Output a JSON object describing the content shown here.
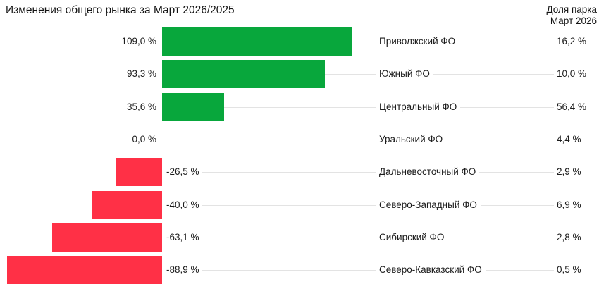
{
  "page": {
    "background": "#FFFFFF"
  },
  "chart_data": {
    "type": "bar",
    "orientation": "horizontal",
    "title": "Изменения общего рынка за Март 2026/2025",
    "share_header": {
      "line1": "Доля парка",
      "line2": "Март 2026"
    },
    "categories": [
      "Приволжский ФО",
      "Южный ФО",
      "Центральный ФО",
      "Уральский ФО",
      "Дальневосточный ФО",
      "Северо-Западный ФО",
      "Сибирский ФО",
      "Северо-Кавказский ФО"
    ],
    "series": [
      {
        "name": "Изменения общего рынка за Март 2026/2025, %",
        "values": [
          109.0,
          93.3,
          35.6,
          0.0,
          -26.5,
          -40.0,
          -63.1,
          -88.9
        ]
      },
      {
        "name": "Доля парка Март 2026, %",
        "values": [
          16.2,
          10.0,
          56.4,
          4.4,
          2.9,
          6.9,
          2.8,
          0.5
        ]
      }
    ],
    "value_labels": [
      "109,0 %",
      "93,3 %",
      "35,6 %",
      "0,0 %",
      "-26,5 %",
      "-40,0 %",
      "-63,1 %",
      "-88,9 %"
    ],
    "share_labels": [
      "16,2 %",
      "10,0 %",
      "56,4 %",
      "4,4 %",
      "2,9 %",
      "6,9 %",
      "2,8 %",
      "0,5 %"
    ],
    "xlim": [
      -100,
      115
    ],
    "grid": false,
    "legend": false,
    "colors": {
      "positive_bar": "#08A73C",
      "negative_bar": "#FF3046",
      "leader_line": "#E3E3E3",
      "text": "#1C1C1C"
    }
  }
}
